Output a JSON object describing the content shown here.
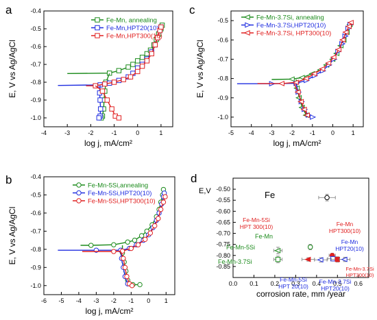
{
  "chart_data": [
    {
      "panel_letter": "a",
      "type": "line",
      "xlabel": "log j, mA/cm²",
      "ylabel": "E, V vs Ag/AgCl",
      "xlim": [
        -4,
        1.5
      ],
      "ylim": [
        -1.05,
        -0.4
      ],
      "xticks": [
        "-4",
        "-3",
        "-2",
        "-1",
        "0",
        "1"
      ],
      "yticks": [
        "-0.4",
        "-0.5",
        "-0.6",
        "-0.7",
        "-0.8",
        "-0.9",
        "-1.0"
      ],
      "legend_position": "top-right",
      "series": [
        {
          "name": "Fe-Mn, annealing",
          "color": "#1a8a1a",
          "marker": "square",
          "anodic": [
            [
              -3.0,
              -0.751
            ],
            [
              -1.2,
              -0.749
            ],
            [
              -0.8,
              -0.735
            ],
            [
              -0.4,
              -0.715
            ],
            [
              -0.2,
              -0.7
            ],
            [
              0.0,
              -0.68
            ],
            [
              0.2,
              -0.66
            ],
            [
              0.4,
              -0.64
            ],
            [
              0.55,
              -0.62
            ],
            [
              0.7,
              -0.59
            ],
            [
              0.8,
              -0.56
            ],
            [
              0.9,
              -0.53
            ],
            [
              1.0,
              -0.5
            ],
            [
              1.05,
              -0.48
            ]
          ],
          "cathodic": [
            [
              -1.2,
              -0.751
            ],
            [
              -1.35,
              -0.8
            ],
            [
              -1.4,
              -0.85
            ],
            [
              -1.43,
              -0.9
            ],
            [
              -1.45,
              -0.95
            ],
            [
              -1.5,
              -0.99
            ],
            [
              -1.55,
              -1.0
            ]
          ]
        },
        {
          "name": "Fe-Mn,HPT20(10)",
          "color": "#1f2de0",
          "marker": "square",
          "anodic": [
            [
              -3.4,
              -0.818
            ],
            [
              -1.6,
              -0.815
            ],
            [
              -1.2,
              -0.805
            ],
            [
              -0.8,
              -0.79
            ],
            [
              -0.4,
              -0.77
            ],
            [
              -0.2,
              -0.75
            ],
            [
              0.0,
              -0.72
            ],
            [
              0.2,
              -0.7
            ],
            [
              0.4,
              -0.67
            ],
            [
              0.6,
              -0.63
            ],
            [
              0.75,
              -0.59
            ],
            [
              0.85,
              -0.55
            ],
            [
              0.95,
              -0.51
            ],
            [
              1.0,
              -0.49
            ]
          ],
          "cathodic": [
            [
              -1.6,
              -0.818
            ],
            [
              -1.62,
              -0.86
            ],
            [
              -1.6,
              -0.9
            ],
            [
              -1.58,
              -0.95
            ],
            [
              -1.6,
              -0.99
            ],
            [
              -1.65,
              -1.0
            ]
          ]
        },
        {
          "name": "Fe-Mn,HPT300(10)",
          "color": "#e02020",
          "marker": "square",
          "anodic": [
            [
              -2.2,
              -0.82
            ],
            [
              -1.8,
              -0.82
            ],
            [
              -1.4,
              -0.81
            ],
            [
              -1.0,
              -0.8
            ],
            [
              -0.6,
              -0.785
            ],
            [
              -0.3,
              -0.77
            ],
            [
              0.0,
              -0.74
            ],
            [
              0.2,
              -0.71
            ],
            [
              0.4,
              -0.68
            ],
            [
              0.6,
              -0.64
            ],
            [
              0.75,
              -0.59
            ],
            [
              0.85,
              -0.55
            ],
            [
              0.95,
              -0.51
            ],
            [
              1.0,
              -0.49
            ]
          ],
          "cathodic": [
            [
              -1.8,
              -0.82
            ],
            [
              -1.5,
              -0.85
            ],
            [
              -1.3,
              -0.9
            ],
            [
              -1.1,
              -0.95
            ],
            [
              -0.95,
              -0.99
            ],
            [
              -0.8,
              -1.0
            ]
          ]
        }
      ]
    },
    {
      "panel_letter": "b",
      "type": "line",
      "xlabel": "log j, mA/cm²",
      "ylabel": "E, V vs Ag/AgCl",
      "xlim": [
        -6,
        1.5
      ],
      "ylim": [
        -1.05,
        -0.4
      ],
      "xticks": [
        "-6",
        "-5",
        "-4",
        "-3",
        "-2",
        "-1",
        "0",
        "1"
      ],
      "yticks": [
        "-0.4",
        "-0.5",
        "-0.6",
        "-0.7",
        "-0.8",
        "-0.9",
        "-1.0"
      ],
      "legend_position": "top-right",
      "series": [
        {
          "name": "Fe-Mn-5Si,annealing",
          "color": "#1a8a1a",
          "marker": "circle",
          "anodic": [
            [
              -3.9,
              -0.778
            ],
            [
              -3.3,
              -0.778
            ],
            [
              -2.0,
              -0.775
            ],
            [
              -1.2,
              -0.76
            ],
            [
              -0.8,
              -0.75
            ],
            [
              -0.4,
              -0.725
            ],
            [
              -0.1,
              -0.7
            ],
            [
              0.2,
              -0.665
            ],
            [
              0.45,
              -0.62
            ],
            [
              0.6,
              -0.58
            ],
            [
              0.7,
              -0.54
            ],
            [
              0.8,
              -0.5
            ],
            [
              0.85,
              -0.47
            ]
          ],
          "cathodic": [
            [
              -1.5,
              -0.778
            ],
            [
              -1.5,
              -0.82
            ],
            [
              -1.4,
              -0.87
            ],
            [
              -1.3,
              -0.92
            ],
            [
              -1.2,
              -0.97
            ],
            [
              -0.9,
              -0.995
            ],
            [
              -0.5,
              -0.995
            ]
          ]
        },
        {
          "name": "Fe-Mn-5Si,HPT20(10)",
          "color": "#1f2de0",
          "marker": "circle",
          "anodic": [
            [
              -5.2,
              -0.805
            ],
            [
              -3.0,
              -0.805
            ],
            [
              -1.6,
              -0.805
            ],
            [
              -1.1,
              -0.795
            ],
            [
              -0.7,
              -0.775
            ],
            [
              -0.3,
              -0.75
            ],
            [
              0.0,
              -0.72
            ],
            [
              0.25,
              -0.68
            ],
            [
              0.45,
              -0.64
            ],
            [
              0.6,
              -0.6
            ],
            [
              0.75,
              -0.55
            ],
            [
              0.85,
              -0.51
            ],
            [
              0.9,
              -0.49
            ]
          ],
          "cathodic": [
            [
              -1.6,
              -0.805
            ],
            [
              -1.55,
              -0.85
            ],
            [
              -1.45,
              -0.9
            ],
            [
              -1.35,
              -0.95
            ],
            [
              -1.2,
              -0.99
            ]
          ]
        },
        {
          "name": "Fe-Mn-5Si,HPT300(10)",
          "color": "#e02020",
          "marker": "circle",
          "anodic": [
            [
              -3.8,
              -0.812
            ],
            [
              -2.0,
              -0.812
            ],
            [
              -1.5,
              -0.81
            ],
            [
              -1.0,
              -0.795
            ],
            [
              -0.6,
              -0.775
            ],
            [
              -0.2,
              -0.745
            ],
            [
              0.1,
              -0.71
            ],
            [
              0.35,
              -0.67
            ],
            [
              0.55,
              -0.63
            ],
            [
              0.7,
              -0.58
            ],
            [
              0.85,
              -0.54
            ],
            [
              0.95,
              -0.51
            ]
          ],
          "cathodic": [
            [
              -1.6,
              -0.812
            ],
            [
              -1.45,
              -0.85
            ],
            [
              -1.35,
              -0.9
            ],
            [
              -1.25,
              -0.95
            ],
            [
              -1.1,
              -0.99
            ],
            [
              -0.95,
              -1.0
            ]
          ]
        }
      ]
    },
    {
      "panel_letter": "c",
      "type": "line",
      "xlabel": "log j, mA/cm²",
      "ylabel": "E, V vs Ag/AgCl",
      "xlim": [
        -5,
        1.5
      ],
      "ylim": [
        -1.05,
        -0.45
      ],
      "xticks": [
        "-5",
        "-4",
        "-3",
        "-2",
        "-1",
        "0",
        "1"
      ],
      "yticks": [
        "-0.5",
        "-0.6",
        "-0.7",
        "-0.8",
        "-0.9",
        "-1.0"
      ],
      "legend_position": "top-right",
      "series": [
        {
          "name": "Fe-Mn-3.7Si, annealing",
          "color": "#1a8a1a",
          "marker": "tri-left",
          "anodic": [
            [
              -3.0,
              -0.805
            ],
            [
              -2.0,
              -0.803
            ],
            [
              -1.5,
              -0.795
            ],
            [
              -1.0,
              -0.775
            ],
            [
              -0.6,
              -0.755
            ],
            [
              -0.3,
              -0.73
            ],
            [
              0.0,
              -0.7
            ],
            [
              0.2,
              -0.67
            ],
            [
              0.4,
              -0.63
            ],
            [
              0.55,
              -0.6
            ],
            [
              0.7,
              -0.56
            ],
            [
              0.8,
              -0.53
            ],
            [
              0.85,
              -0.52
            ]
          ],
          "cathodic": [
            [
              -1.8,
              -0.805
            ],
            [
              -1.75,
              -0.85
            ],
            [
              -1.65,
              -0.9
            ],
            [
              -1.5,
              -0.95
            ],
            [
              -1.3,
              -0.99
            ]
          ]
        },
        {
          "name": "Fe-Mn-3.7Si,HPT20(10)",
          "color": "#1f2de0",
          "marker": "tri-right",
          "anodic": [
            [
              -4.7,
              -0.827
            ],
            [
              -3.0,
              -0.827
            ],
            [
              -1.8,
              -0.825
            ],
            [
              -1.3,
              -0.81
            ],
            [
              -0.9,
              -0.785
            ],
            [
              -0.5,
              -0.76
            ],
            [
              -0.2,
              -0.73
            ],
            [
              0.05,
              -0.7
            ],
            [
              0.25,
              -0.66
            ],
            [
              0.45,
              -0.62
            ],
            [
              0.6,
              -0.58
            ],
            [
              0.75,
              -0.54
            ],
            [
              0.85,
              -0.52
            ]
          ],
          "cathodic": [
            [
              -1.8,
              -0.827
            ],
            [
              -1.7,
              -0.87
            ],
            [
              -1.55,
              -0.92
            ],
            [
              -1.4,
              -0.96
            ],
            [
              -1.2,
              -0.99
            ],
            [
              -1.0,
              -1.0
            ]
          ]
        },
        {
          "name": "Fe-Mn-3.7Si, HPT300(10)",
          "color": "#e02020",
          "marker": "tri-left",
          "anodic": [
            [
              -3.7,
              -0.826
            ],
            [
              -2.5,
              -0.826
            ],
            [
              -1.8,
              -0.82
            ],
            [
              -1.3,
              -0.8
            ],
            [
              -0.9,
              -0.775
            ],
            [
              -0.5,
              -0.75
            ],
            [
              -0.2,
              -0.72
            ],
            [
              0.05,
              -0.69
            ],
            [
              0.3,
              -0.65
            ],
            [
              0.5,
              -0.6
            ],
            [
              0.65,
              -0.56
            ],
            [
              0.8,
              -0.53
            ],
            [
              0.9,
              -0.51
            ]
          ],
          "cathodic": [
            [
              -1.9,
              -0.826
            ],
            [
              -1.7,
              -0.87
            ],
            [
              -1.55,
              -0.92
            ],
            [
              -1.4,
              -0.96
            ],
            [
              -1.25,
              -0.99
            ]
          ]
        }
      ]
    },
    {
      "panel_letter": "d",
      "type": "scatter",
      "xlabel": "corrosion rate, mm /year",
      "ylabel": "E,V",
      "xlim": [
        0.0,
        0.65
      ],
      "ylim": [
        -0.9,
        -0.45
      ],
      "xticks": [
        "0.0",
        "0.1",
        "0.2",
        "0.3",
        "0.4",
        "0.5",
        "0.6"
      ],
      "yticks": [
        "-0.50",
        "-0.55",
        "-0.60",
        "-0.65",
        "-0.70",
        "-0.75",
        "-0.80",
        "-0.85"
      ],
      "points": [
        {
          "x": 0.45,
          "y": -0.538,
          "xerr": 0.04,
          "yerr": 0.015,
          "color": "#000000",
          "marker": "circle-open",
          "label": "Fe"
        },
        {
          "x": 0.37,
          "y": -0.762,
          "xerr": 0.01,
          "yerr": 0.012,
          "color": "#1a8a1a",
          "marker": "circle-open",
          "label": "Fe-Mn"
        },
        {
          "x": 0.215,
          "y": -0.778,
          "xerr": 0.02,
          "yerr": 0.015,
          "color": "#1a8a1a",
          "marker": "tri-left-open",
          "label": "Fe-Mn-5Si"
        },
        {
          "x": 0.215,
          "y": -0.818,
          "xerr": 0.02,
          "yerr": 0.015,
          "color": "#1a8a1a",
          "marker": "square-open",
          "label": "Fe-Mn-3.7Si"
        },
        {
          "x": 0.475,
          "y": -0.8,
          "xerr": 0.015,
          "yerr": 0.01,
          "color": "#e02020",
          "marker": "circle",
          "label": "Fe-Mn HPT300(10)"
        },
        {
          "x": 0.478,
          "y": -0.815,
          "xerr": 0.025,
          "yerr": 0.01,
          "color": "#1f2de0",
          "marker": "square-open",
          "label": "Fe-Mn HPT20(10)"
        },
        {
          "x": 0.36,
          "y": -0.818,
          "xerr": 0.03,
          "yerr": 0.008,
          "color": "#e02020",
          "marker": "tri-left",
          "label": "Fe-Mn-5Si HPT 300(10)"
        },
        {
          "x": 0.42,
          "y": -0.82,
          "xerr": 0.03,
          "yerr": 0.01,
          "color": "#1f2de0",
          "marker": "tri-left-open",
          "label": "Fe-Mn-5Si HPT 20(10)"
        },
        {
          "x": 0.5,
          "y": -0.818,
          "xerr": 0.03,
          "yerr": 0.012,
          "color": "#e02020",
          "marker": "square",
          "label": "Fe-Mn-3.7Si HPT300(10)"
        },
        {
          "x": 0.535,
          "y": -0.818,
          "xerr": 0.025,
          "yerr": 0.01,
          "color": "#1f2de0",
          "marker": "tri-left-open",
          "label": "Fe-Mn-3.7Si HPT20(10)"
        }
      ],
      "annotations": [
        {
          "text": "Fe",
          "color": "#000000"
        },
        {
          "text": "Fe-Mn",
          "color": "#1a8a1a"
        },
        {
          "text": "Fe-Mn-5Si",
          "color": "#1a8a1a"
        },
        {
          "text": "Fe-Mn-3.7Si",
          "color": "#1a8a1a"
        },
        {
          "text": "Fe-Mn-5Si",
          "color": "#e02020"
        },
        {
          "text": "HPT 300(10)",
          "color": "#e02020"
        },
        {
          "text": "Fe-Mn",
          "color": "#e02020"
        },
        {
          "text": "HPT300(10)",
          "color": "#e02020"
        },
        {
          "text": "Fe-Mn",
          "color": "#1f2de0"
        },
        {
          "text": "HPT20(10)",
          "color": "#1f2de0"
        },
        {
          "text": "Fe-Mn-3.7Si",
          "color": "#e02020"
        },
        {
          "text": "HPT300(10)",
          "color": "#e02020"
        },
        {
          "text": "Fe-Mn-5Si",
          "color": "#1f2de0"
        },
        {
          "text": "HPT 20(10)",
          "color": "#1f2de0"
        },
        {
          "text": "Fe-Mn-3.7Si",
          "color": "#1f2de0"
        },
        {
          "text": "HPT20(10)",
          "color": "#1f2de0"
        }
      ]
    }
  ]
}
